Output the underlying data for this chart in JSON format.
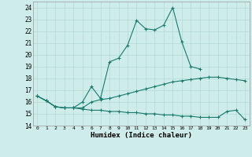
{
  "xlabel": "Humidex (Indice chaleur)",
  "background_color": "#ceecea",
  "grid_color": "#b8ddd9",
  "line_color": "#1a7a6e",
  "x_ticks": [
    0,
    1,
    2,
    3,
    4,
    5,
    6,
    7,
    8,
    9,
    10,
    11,
    12,
    13,
    14,
    15,
    16,
    17,
    18,
    19,
    20,
    21,
    22,
    23
  ],
  "ylim": [
    14,
    24.5
  ],
  "xlim": [
    -0.5,
    23.5
  ],
  "yticks": [
    14,
    15,
    16,
    17,
    18,
    19,
    20,
    21,
    22,
    23,
    24
  ],
  "series1_y": [
    16.5,
    16.1,
    15.6,
    15.5,
    15.5,
    15.5,
    16.0,
    16.2,
    16.3,
    16.5,
    16.7,
    16.9,
    17.1,
    17.3,
    17.5,
    17.7,
    17.8,
    17.9,
    18.0,
    18.1,
    18.1,
    18.0,
    17.9,
    17.8
  ],
  "series2_x": [
    0,
    1,
    2,
    3,
    4,
    5,
    6,
    7,
    8,
    9,
    10,
    11,
    12,
    13,
    14,
    15,
    16,
    17,
    18
  ],
  "series2_y": [
    16.5,
    16.1,
    15.6,
    15.5,
    15.5,
    16.0,
    17.3,
    16.3,
    19.4,
    19.7,
    20.8,
    22.9,
    22.2,
    22.1,
    22.5,
    24.0,
    21.1,
    19.0,
    18.8
  ],
  "series3_y": [
    16.5,
    16.1,
    15.6,
    15.5,
    15.5,
    15.4,
    15.3,
    15.3,
    15.2,
    15.2,
    15.1,
    15.1,
    15.0,
    15.0,
    14.9,
    14.9,
    14.8,
    14.8,
    14.7,
    14.7,
    14.7,
    15.2,
    15.3,
    14.5
  ]
}
